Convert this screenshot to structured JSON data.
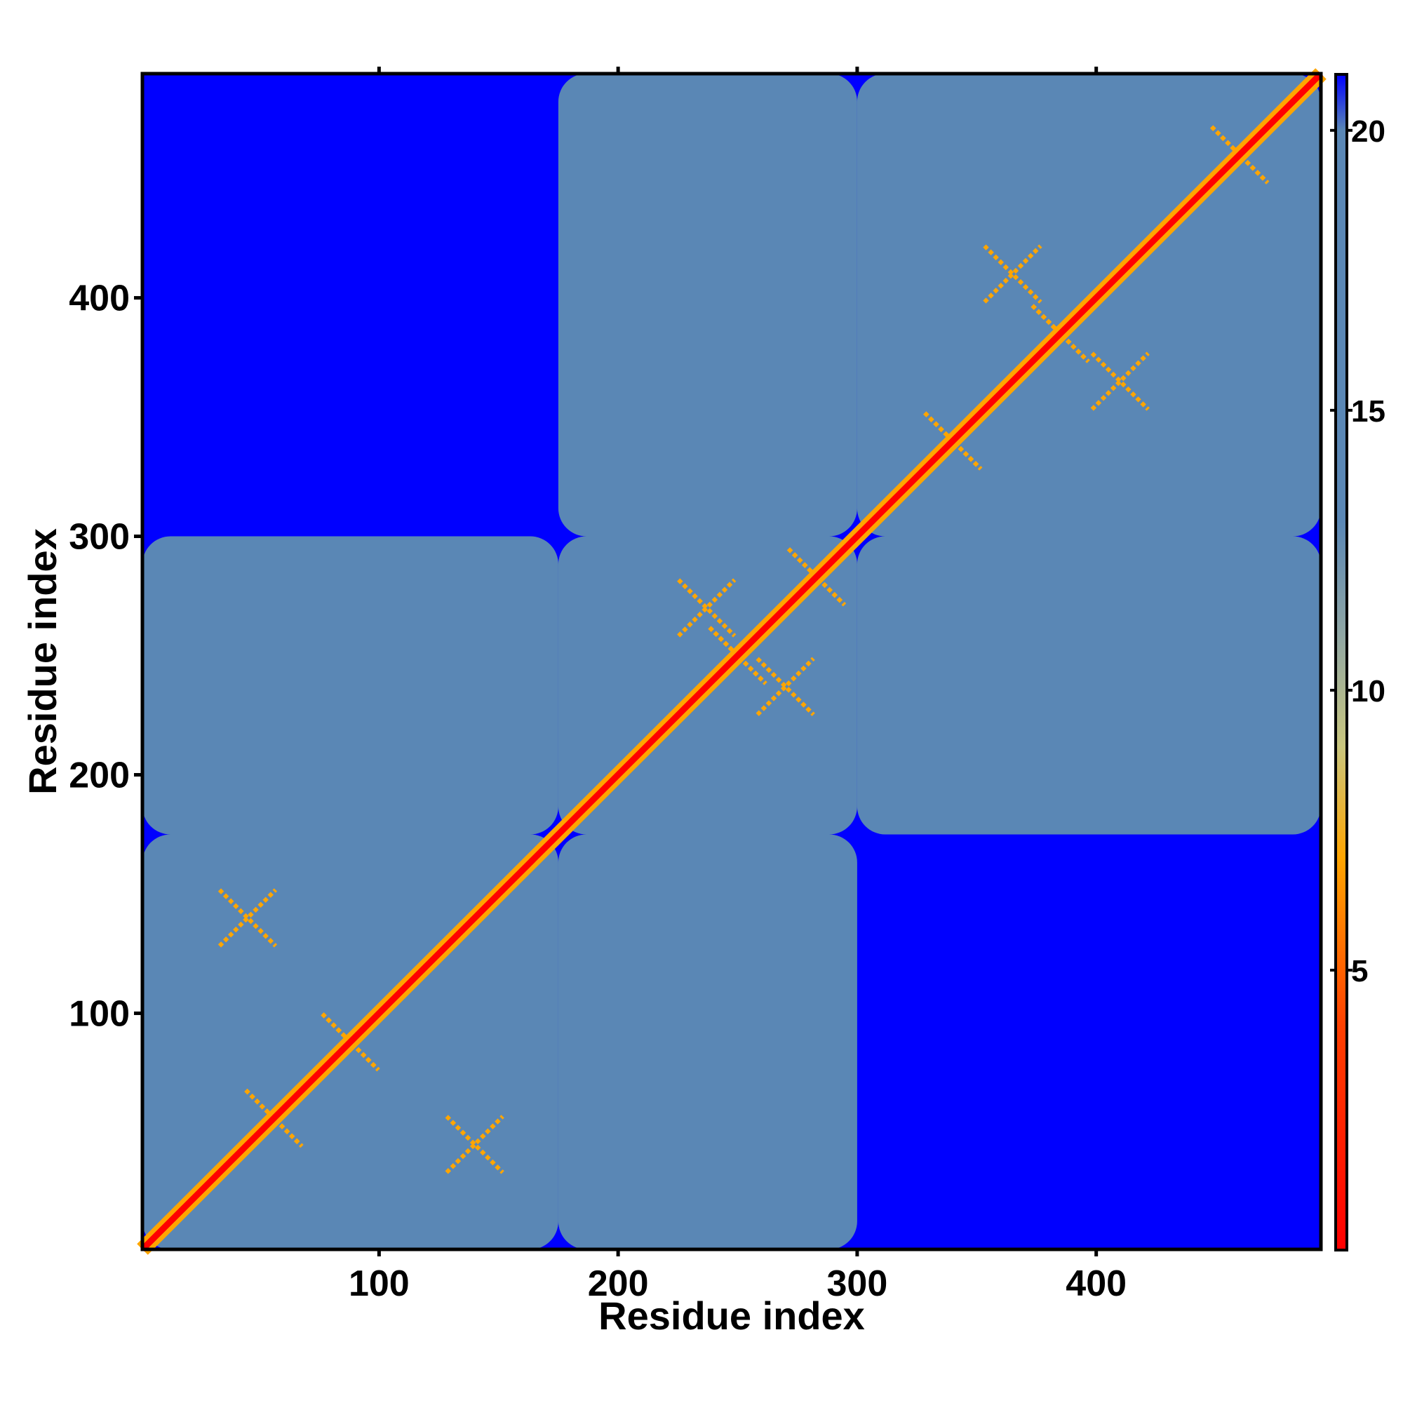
{
  "chart_data": {
    "type": "heatmap",
    "title": "",
    "xlabel": "Residue index",
    "ylabel": "Residue index",
    "xlim": [
      1,
      494
    ],
    "ylim": [
      1,
      494
    ],
    "x_ticks": [
      100,
      200,
      300,
      400
    ],
    "y_ticks": [
      100,
      200,
      300,
      400
    ],
    "x_tick_labels": [
      "100",
      "200",
      "300",
      "400"
    ],
    "y_tick_labels": [
      "100",
      "200",
      "300",
      "400"
    ],
    "colorbar": {
      "range": [
        0,
        21
      ],
      "ticks": [
        5,
        10,
        15,
        20
      ],
      "tick_labels": [
        "5",
        "10",
        "15",
        "20"
      ],
      "colors": [
        {
          "value": 0,
          "color": "#ff0000"
        },
        {
          "value": 4,
          "color": "#ff4000"
        },
        {
          "value": 7,
          "color": "#ffa500"
        },
        {
          "value": 9,
          "color": "#c9c67e"
        },
        {
          "value": 11,
          "color": "#8fa6a4"
        },
        {
          "value": 13,
          "color": "#5a87b5"
        },
        {
          "value": 20,
          "color": "#5a87b5"
        },
        {
          "value": 21,
          "color": "#0000ff"
        }
      ]
    },
    "diagonal_value": 0,
    "background_value": 21,
    "dense_region_value": 17,
    "domains": [
      {
        "start": 1,
        "end": 175
      },
      {
        "start": 175,
        "end": 300
      },
      {
        "start": 300,
        "end": 494
      }
    ],
    "secondary_contacts": [
      {
        "i": 88,
        "j": 88
      },
      {
        "i": 56,
        "j": 56
      },
      {
        "i": 283,
        "j": 283
      },
      {
        "i": 250,
        "j": 250
      },
      {
        "i": 340,
        "j": 340
      },
      {
        "i": 460,
        "j": 460
      },
      {
        "i": 385,
        "j": 385
      },
      {
        "i": 140,
        "j": 45
      },
      {
        "i": 237,
        "j": 270
      },
      {
        "i": 410,
        "j": 365
      }
    ],
    "grid": false,
    "legend": "colorbar-right"
  }
}
